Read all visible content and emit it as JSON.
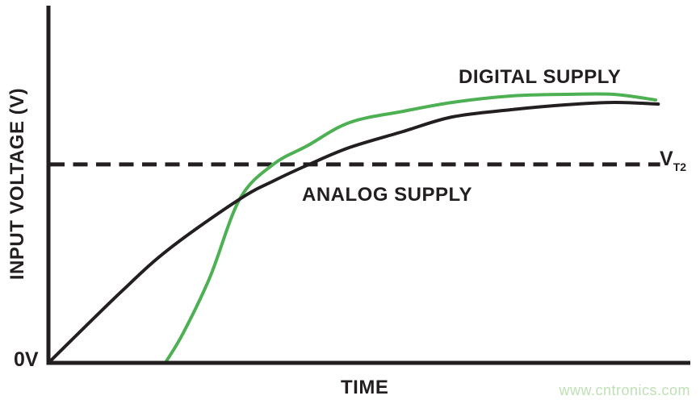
{
  "figure": {
    "origin_label": "0V",
    "x_axis_label": "TIME",
    "y_axis_label": "INPUT VOLTAGE (V)",
    "watermark": "www.cntronics.com",
    "colors": {
      "ink": "#231f20",
      "digital_green": "#4db052",
      "watermark_green": "#bee1b4",
      "background": "#ffffff"
    }
  },
  "chart_data": {
    "type": "line",
    "title": "",
    "xlabel": "TIME",
    "ylabel": "INPUT VOLTAGE (V)",
    "xlim": [
      0,
      1
    ],
    "ylim": [
      0,
      1.35
    ],
    "grid": false,
    "legend_position": "inline-labels",
    "axis_ticks": "none (unitless conceptual plot; origin marked 0V)",
    "series": [
      {
        "name": "ANALOG SUPPLY",
        "color": "#231f20",
        "line_style": "solid",
        "points": [
          [
            0.0,
            0.0
          ],
          [
            0.113,
            0.264
          ],
          [
            0.189,
            0.426
          ],
          [
            0.298,
            0.61
          ],
          [
            0.352,
            0.679
          ],
          [
            0.406,
            0.739
          ],
          [
            0.469,
            0.802
          ],
          [
            0.553,
            0.862
          ],
          [
            0.629,
            0.916
          ],
          [
            0.721,
            0.943
          ],
          [
            0.805,
            0.961
          ],
          [
            0.881,
            0.97
          ],
          [
            0.95,
            0.964
          ]
        ]
      },
      {
        "name": "DIGITAL SUPPLY",
        "color": "#4db052",
        "line_style": "solid",
        "points": [
          [
            0.182,
            0.0
          ],
          [
            0.21,
            0.111
          ],
          [
            0.252,
            0.321
          ],
          [
            0.298,
            0.61
          ],
          [
            0.35,
            0.739
          ],
          [
            0.403,
            0.808
          ],
          [
            0.469,
            0.895
          ],
          [
            0.553,
            0.937
          ],
          [
            0.629,
            0.97
          ],
          [
            0.721,
            0.994
          ],
          [
            0.805,
            1.0
          ],
          [
            0.881,
            1.0
          ],
          [
            0.946,
            0.979
          ]
        ]
      }
    ],
    "threshold_line": {
      "symbol": "V",
      "subscript": "T2",
      "value": 0.739,
      "style": "dashed",
      "color": "#231f20",
      "span": [
        0.0,
        0.953
      ]
    },
    "series_labels": [
      {
        "text": "DIGITAL SUPPLY",
        "attached_to": "DIGITAL SUPPLY"
      },
      {
        "text": "ANALOG SUPPLY",
        "attached_to": "ANALOG SUPPLY"
      }
    ]
  }
}
